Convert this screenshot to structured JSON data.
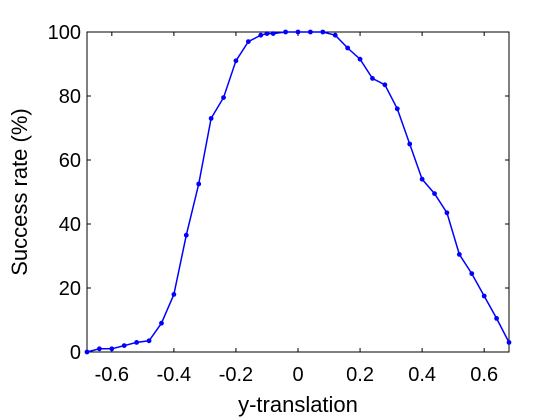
{
  "chart_data": {
    "type": "line",
    "title": "",
    "xlabel": "y-translation",
    "ylabel": "Success rate (%)",
    "xlim": [
      -0.68,
      0.68
    ],
    "ylim": [
      0,
      100
    ],
    "x_ticks": [
      -0.6,
      -0.4,
      -0.2,
      0,
      0.2,
      0.4,
      0.6
    ],
    "x_tick_labels": [
      "-0.6",
      "-0.4",
      "-0.2",
      "0",
      "0.2",
      "0.4",
      "0.6"
    ],
    "y_ticks": [
      0,
      20,
      40,
      60,
      80,
      100
    ],
    "y_tick_labels": [
      "0",
      "20",
      "40",
      "60",
      "80",
      "100"
    ],
    "grid": false,
    "series": [
      {
        "color": "#0000ff",
        "marker": "dot",
        "x": [
          -0.68,
          -0.64,
          -0.6,
          -0.56,
          -0.52,
          -0.48,
          -0.44,
          -0.4,
          -0.36,
          -0.32,
          -0.28,
          -0.24,
          -0.2,
          -0.16,
          -0.12,
          -0.1,
          -0.08,
          -0.04,
          0,
          0.04,
          0.08,
          0.12,
          0.16,
          0.2,
          0.24,
          0.28,
          0.32,
          0.36,
          0.4,
          0.44,
          0.48,
          0.52,
          0.56,
          0.6,
          0.64,
          0.68
        ],
        "y": [
          0,
          1,
          1,
          2,
          3,
          3.5,
          9,
          18,
          36.5,
          52.5,
          73,
          79.5,
          91,
          97,
          99,
          99.5,
          99.5,
          100,
          100,
          100,
          100,
          99,
          95,
          91.5,
          85.5,
          83.5,
          76,
          65,
          54,
          49.5,
          43.5,
          30.5,
          24.5,
          17.5,
          10.5,
          3
        ]
      }
    ]
  }
}
